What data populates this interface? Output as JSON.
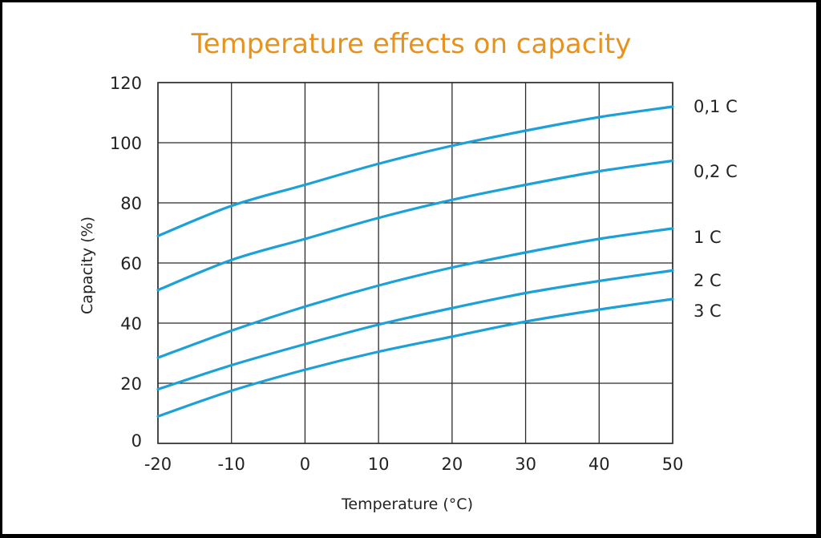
{
  "chart_data": {
    "type": "line",
    "title": "Temperature effects on capacity",
    "xlabel": "Temperature (°C)",
    "ylabel": "Capacity (%)",
    "xlim": [
      -20,
      50
    ],
    "ylim": [
      0,
      120
    ],
    "x_ticks": [
      "-20",
      "-10",
      "0",
      "10",
      "20",
      "30",
      "40",
      "50"
    ],
    "y_ticks": [
      "0",
      "20",
      "40",
      "60",
      "80",
      "100",
      "120"
    ],
    "grid": true,
    "legend": "series labels at right end of lines",
    "colors": {
      "title": "#E8921E",
      "line": "#1BA0D8",
      "grid": "#2a2a2a",
      "frame": "#000000"
    },
    "series": [
      {
        "name": "0,1 C",
        "x": [
          -20,
          -10,
          0,
          10,
          20,
          30,
          40,
          50
        ],
        "values": [
          69,
          79,
          86,
          93,
          99,
          104,
          108.5,
          112
        ]
      },
      {
        "name": "0,2 C",
        "x": [
          -20,
          -10,
          0,
          10,
          20,
          30,
          40,
          50
        ],
        "values": [
          51,
          61,
          68,
          75,
          81,
          86,
          90.5,
          94
        ]
      },
      {
        "name": "1 C",
        "x": [
          -20,
          -10,
          0,
          10,
          20,
          30,
          40,
          50
        ],
        "values": [
          28.5,
          37.5,
          45.5,
          52.5,
          58.5,
          63.5,
          68,
          71.5
        ]
      },
      {
        "name": "2 C",
        "x": [
          -20,
          -10,
          0,
          10,
          20,
          30,
          40,
          50
        ],
        "values": [
          18,
          26,
          33,
          39.5,
          45,
          50,
          54,
          57.5
        ]
      },
      {
        "name": "3 C",
        "x": [
          -20,
          -10,
          0,
          10,
          20,
          30,
          40,
          50
        ],
        "values": [
          9,
          17.5,
          24.5,
          30.5,
          35.5,
          40.5,
          44.5,
          48
        ]
      }
    ]
  }
}
